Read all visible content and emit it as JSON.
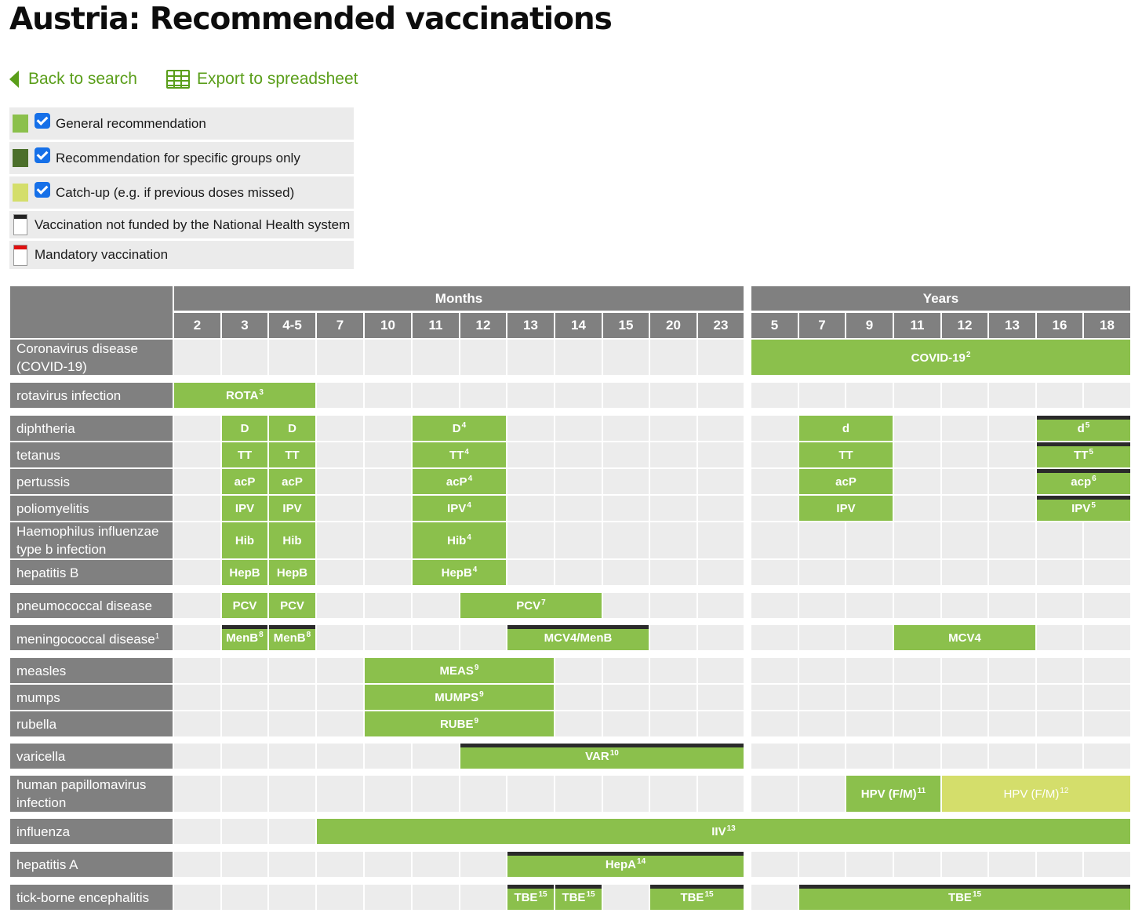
{
  "page": {
    "title": "Austria: Recommended vaccinations"
  },
  "nav": {
    "back_label": "Back to search",
    "export_label": "Export to spreadsheet"
  },
  "legend": [
    {
      "swatch": "general",
      "checkbox": true,
      "label": "General recommendation",
      "color": "#8bc04c"
    },
    {
      "swatch": "specific",
      "checkbox": true,
      "label": "Recommendation for specific groups only",
      "color": "#4c6f2b"
    },
    {
      "swatch": "catchup",
      "checkbox": true,
      "label": "Catch-up (e.g. if previous doses missed)",
      "color": "#d4de6b"
    },
    {
      "swatch": "not-funded",
      "checkbox": false,
      "label": "Vaccination not funded by the National Health system"
    },
    {
      "swatch": "mandatory",
      "checkbox": false,
      "label": "Mandatory vaccination"
    }
  ],
  "table": {
    "groups": [
      {
        "label": "Months",
        "columns": [
          "2",
          "3",
          "4-5",
          "7",
          "10",
          "11",
          "12",
          "13",
          "14",
          "15",
          "20",
          "23"
        ]
      },
      {
        "label": "Years",
        "columns": [
          "5",
          "7",
          "9",
          "11",
          "12",
          "13",
          "16",
          "18"
        ]
      }
    ],
    "rows": [
      {
        "label": "Coronavirus disease (COVID-19)",
        "bars": [
          {
            "label": "COVID-19",
            "sup": "2",
            "from": 12,
            "to": 19,
            "type": "general"
          }
        ]
      },
      {
        "label": "rotavirus infection",
        "bars": [
          {
            "label": "ROTA",
            "sup": "3",
            "from": 0,
            "to": 2,
            "type": "general"
          }
        ]
      },
      {
        "label": "diphtheria",
        "bars": [
          {
            "label": "D",
            "sup": "",
            "from": 1,
            "to": 1,
            "type": "general"
          },
          {
            "label": "D",
            "sup": "",
            "from": 2,
            "to": 2,
            "type": "general"
          },
          {
            "label": "D",
            "sup": "4",
            "from": 5,
            "to": 6,
            "type": "general"
          },
          {
            "label": "d",
            "sup": "",
            "from": 13,
            "to": 14,
            "type": "general"
          },
          {
            "label": "d",
            "sup": "5",
            "from": 18,
            "to": 19,
            "type": "general",
            "not_funded": true
          }
        ]
      },
      {
        "label": "tetanus",
        "bars": [
          {
            "label": "TT",
            "sup": "",
            "from": 1,
            "to": 1,
            "type": "general"
          },
          {
            "label": "TT",
            "sup": "",
            "from": 2,
            "to": 2,
            "type": "general"
          },
          {
            "label": "TT",
            "sup": "4",
            "from": 5,
            "to": 6,
            "type": "general"
          },
          {
            "label": "TT",
            "sup": "",
            "from": 13,
            "to": 14,
            "type": "general"
          },
          {
            "label": "TT",
            "sup": "5",
            "from": 18,
            "to": 19,
            "type": "general",
            "not_funded": true
          }
        ]
      },
      {
        "label": "pertussis",
        "bars": [
          {
            "label": "acP",
            "sup": "",
            "from": 1,
            "to": 1,
            "type": "general"
          },
          {
            "label": "acP",
            "sup": "",
            "from": 2,
            "to": 2,
            "type": "general"
          },
          {
            "label": "acP",
            "sup": "4",
            "from": 5,
            "to": 6,
            "type": "general"
          },
          {
            "label": "acP",
            "sup": "",
            "from": 13,
            "to": 14,
            "type": "general"
          },
          {
            "label": "acp",
            "sup": "6",
            "from": 18,
            "to": 19,
            "type": "general",
            "not_funded": true
          }
        ]
      },
      {
        "label": "poliomyelitis",
        "bars": [
          {
            "label": "IPV",
            "sup": "",
            "from": 1,
            "to": 1,
            "type": "general"
          },
          {
            "label": "IPV",
            "sup": "",
            "from": 2,
            "to": 2,
            "type": "general"
          },
          {
            "label": "IPV",
            "sup": "4",
            "from": 5,
            "to": 6,
            "type": "general"
          },
          {
            "label": "IPV",
            "sup": "",
            "from": 13,
            "to": 14,
            "type": "general"
          },
          {
            "label": "IPV",
            "sup": "5",
            "from": 18,
            "to": 19,
            "type": "general",
            "not_funded": true
          }
        ]
      },
      {
        "label": "Haemophilus influenzae type b infection",
        "bars": [
          {
            "label": "Hib",
            "sup": "",
            "from": 1,
            "to": 1,
            "type": "general"
          },
          {
            "label": "Hib",
            "sup": "",
            "from": 2,
            "to": 2,
            "type": "general"
          },
          {
            "label": "Hib",
            "sup": "4",
            "from": 5,
            "to": 6,
            "type": "general"
          }
        ]
      },
      {
        "label": "hepatitis B",
        "bars": [
          {
            "label": "HepB",
            "sup": "",
            "from": 1,
            "to": 1,
            "type": "general"
          },
          {
            "label": "HepB",
            "sup": "",
            "from": 2,
            "to": 2,
            "type": "general"
          },
          {
            "label": "HepB",
            "sup": "4",
            "from": 5,
            "to": 6,
            "type": "general"
          }
        ]
      },
      {
        "label": "pneumococcal disease",
        "bars": [
          {
            "label": "PCV",
            "sup": "",
            "from": 1,
            "to": 1,
            "type": "general"
          },
          {
            "label": "PCV",
            "sup": "",
            "from": 2,
            "to": 2,
            "type": "general"
          },
          {
            "label": "PCV",
            "sup": "7",
            "from": 6,
            "to": 8,
            "type": "general"
          }
        ]
      },
      {
        "label": "meningococcal disease",
        "label_sup": "1",
        "bars": [
          {
            "label": "MenB",
            "sup": "8",
            "from": 1,
            "to": 1,
            "type": "general",
            "not_funded": true
          },
          {
            "label": "MenB",
            "sup": "8",
            "from": 2,
            "to": 2,
            "type": "general",
            "not_funded": true
          },
          {
            "label": "MCV4/MenB",
            "sup": "",
            "from": 7,
            "to": 9,
            "type": "general",
            "not_funded": true
          },
          {
            "label": "MCV4",
            "sup": "",
            "from": 15,
            "to": 17,
            "type": "general"
          }
        ]
      },
      {
        "label": "measles",
        "bars": [
          {
            "label": "MEAS",
            "sup": "9",
            "from": 4,
            "to": 7,
            "type": "general"
          }
        ]
      },
      {
        "label": "mumps",
        "bars": [
          {
            "label": "MUMPS",
            "sup": "9",
            "from": 4,
            "to": 7,
            "type": "general"
          }
        ]
      },
      {
        "label": "rubella",
        "bars": [
          {
            "label": "RUBE",
            "sup": "9",
            "from": 4,
            "to": 7,
            "type": "general"
          }
        ]
      },
      {
        "label": "varicella",
        "bars": [
          {
            "label": "VAR",
            "sup": "10",
            "from": 6,
            "to": 11,
            "type": "general",
            "not_funded": true
          }
        ]
      },
      {
        "label": "human papillomavirus infection",
        "bars": [
          {
            "label": "HPV (F/M)",
            "sup": "11",
            "from": 14,
            "to": 15,
            "type": "general"
          },
          {
            "label": "HPV (F/M)",
            "sup": "12",
            "from": 16,
            "to": 19,
            "type": "catchup"
          }
        ]
      },
      {
        "label": "influenza",
        "bars": [
          {
            "label": "IIV",
            "sup": "13",
            "from": 3,
            "to": 19,
            "type": "general"
          }
        ]
      },
      {
        "label": "hepatitis A",
        "bars": [
          {
            "label": "HepA",
            "sup": "14",
            "from": 7,
            "to": 11,
            "type": "general",
            "not_funded": true
          }
        ]
      },
      {
        "label": "tick-borne encephalitis",
        "bars": [
          {
            "label": "TBE",
            "sup": "15",
            "from": 7,
            "to": 7,
            "type": "general",
            "not_funded": true
          },
          {
            "label": "TBE",
            "sup": "15",
            "from": 8,
            "to": 8,
            "type": "general",
            "not_funded": true
          },
          {
            "label": "TBE",
            "sup": "15",
            "from": 10,
            "to": 11,
            "type": "general",
            "not_funded": true
          },
          {
            "label": "TBE",
            "sup": "15",
            "from": 13,
            "to": 19,
            "type": "general",
            "not_funded": true
          }
        ]
      }
    ]
  }
}
